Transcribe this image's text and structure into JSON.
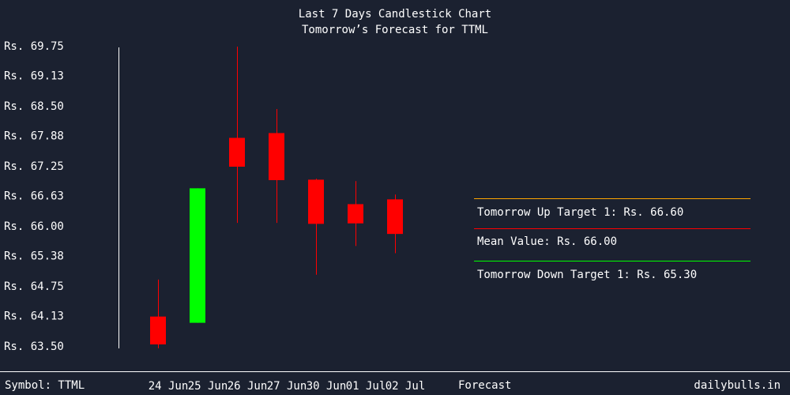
{
  "chart_data": {
    "type": "candlestick",
    "title": "Last 7 Days Candlestick Chart",
    "subtitle": "Tomorrow’s Forecast for TTML",
    "ylim": [
      63.5,
      69.75
    ],
    "yticks": [
      "Rs. 69.75",
      "Rs. 69.13",
      "Rs. 68.50",
      "Rs. 67.88",
      "Rs. 67.25",
      "Rs. 66.63",
      "Rs. 66.00",
      "Rs. 65.38",
      "Rs. 64.75",
      "Rs. 64.13",
      "Rs. 63.50"
    ],
    "ytick_values": [
      69.75,
      69.13,
      68.5,
      67.88,
      67.25,
      66.63,
      66.0,
      65.38,
      64.75,
      64.13,
      63.5
    ],
    "candles": [
      {
        "date": "24 Jun",
        "open": 64.13,
        "close": 63.55,
        "high": 64.9,
        "low": 63.47,
        "color": "#ff0000"
      },
      {
        "date": "25 Jun",
        "open": 64.0,
        "close": 66.8,
        "high": 66.8,
        "low": 64.0,
        "color": "#00ff00"
      },
      {
        "date": "26 Jun",
        "open": 67.85,
        "close": 67.25,
        "high": 69.75,
        "low": 66.08,
        "color": "#ff0000"
      },
      {
        "date": "27 Jun",
        "open": 67.95,
        "close": 66.97,
        "high": 68.45,
        "low": 66.08,
        "color": "#ff0000"
      },
      {
        "date": "30 Jun",
        "open": 66.98,
        "close": 66.06,
        "high": 67.0,
        "low": 65.0,
        "color": "#ff0000"
      },
      {
        "date": "01 Jul",
        "open": 66.47,
        "close": 66.07,
        "high": 66.95,
        "low": 65.6,
        "color": "#ff0000"
      },
      {
        "date": "02 Jul",
        "open": 66.57,
        "close": 65.85,
        "high": 66.67,
        "low": 65.45,
        "color": "#ff0000"
      }
    ],
    "forecast": {
      "label": "Forecast",
      "up_target": {
        "text": "Tomorrow Up Target 1: Rs. 66.60",
        "color": "#ffa500"
      },
      "mean": {
        "text": "Mean Value: Rs. 66.00",
        "color": "#ff0000"
      },
      "down_target": {
        "text": "Tomorrow Down Target 1: Rs. 65.30",
        "color": "#00ff00"
      }
    }
  },
  "footer": {
    "symbol": "Symbol: TTML",
    "site": "dailybulls.in"
  }
}
